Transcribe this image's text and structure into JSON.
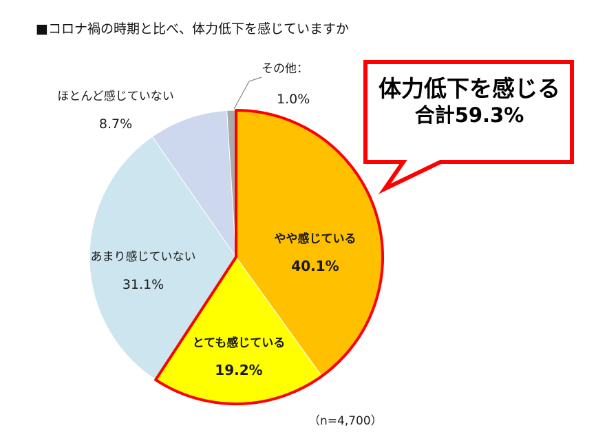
{
  "title": "■コロナ禍の時期と比べ、体力低下を感じていますか",
  "callout": {
    "line1": "体力低下を感じる",
    "line2": "合計59.3%"
  },
  "sample_size": "（n=4,700）",
  "colors": {
    "highlight_border": "#ff0000",
    "label_text": "#1a1a1a"
  },
  "chart_data": {
    "type": "pie",
    "title": "コロナ禍の時期と比べ、体力低下を感じていますか",
    "start": "12 o'clock, clockwise",
    "slices": [
      {
        "label": "やや感じている",
        "value": 40.1,
        "display": "40.1%",
        "color": "#ffc000",
        "bold": true,
        "highlighted": true
      },
      {
        "label": "とても感じている",
        "value": 19.2,
        "display": "19.2%",
        "color": "#ffff00",
        "bold": true,
        "highlighted": true
      },
      {
        "label": "あまり感じていない",
        "value": 31.1,
        "display": "31.1%",
        "color": "#cce5ef",
        "bold": false,
        "highlighted": false
      },
      {
        "label": "ほとんど感じていない",
        "value": 8.7,
        "display": "8.7%",
        "color": "#cdd8ee",
        "bold": false,
        "highlighted": false
      },
      {
        "label": "その他：",
        "value": 1.0,
        "display": "1.0%",
        "color": "#aaaaaa",
        "bold": false,
        "highlighted": false
      }
    ]
  }
}
